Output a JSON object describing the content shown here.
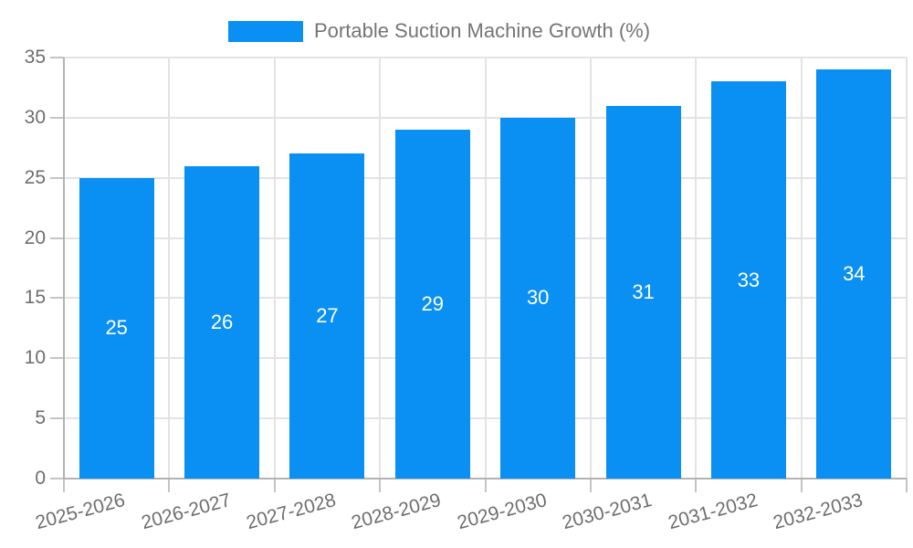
{
  "legend": {
    "label": "Portable Suction Machine Growth (%)"
  },
  "colors": {
    "bar": "#0a8ff2",
    "grid": "#e3e3e3",
    "axis": "#b3b3b3",
    "tick_mark": "#c4c4c4",
    "axis_text": "#6e6e6e",
    "legend_text": "#757575",
    "bar_value_text": "#ffffff",
    "background": "#ffffff"
  },
  "chart_data": {
    "type": "bar",
    "title": "Portable Suction Machine Growth (%)",
    "legend_entries": [
      "Portable Suction Machine Growth (%)"
    ],
    "legend_position": "top",
    "categories": [
      "2025-2026",
      "2026-2027",
      "2027-2028",
      "2028-2029",
      "2029-2030",
      "2030-2031",
      "2031-2032",
      "2032-2033"
    ],
    "values": [
      25,
      26,
      27,
      29,
      30,
      31,
      33,
      34
    ],
    "xlabel": "",
    "ylabel": "",
    "ylim": [
      0,
      35
    ],
    "yticks": [
      0,
      5,
      10,
      15,
      20,
      25,
      30,
      35
    ],
    "grid": true,
    "value_labels_position": "center-inside",
    "x_tick_label_rotation_deg": -15
  }
}
